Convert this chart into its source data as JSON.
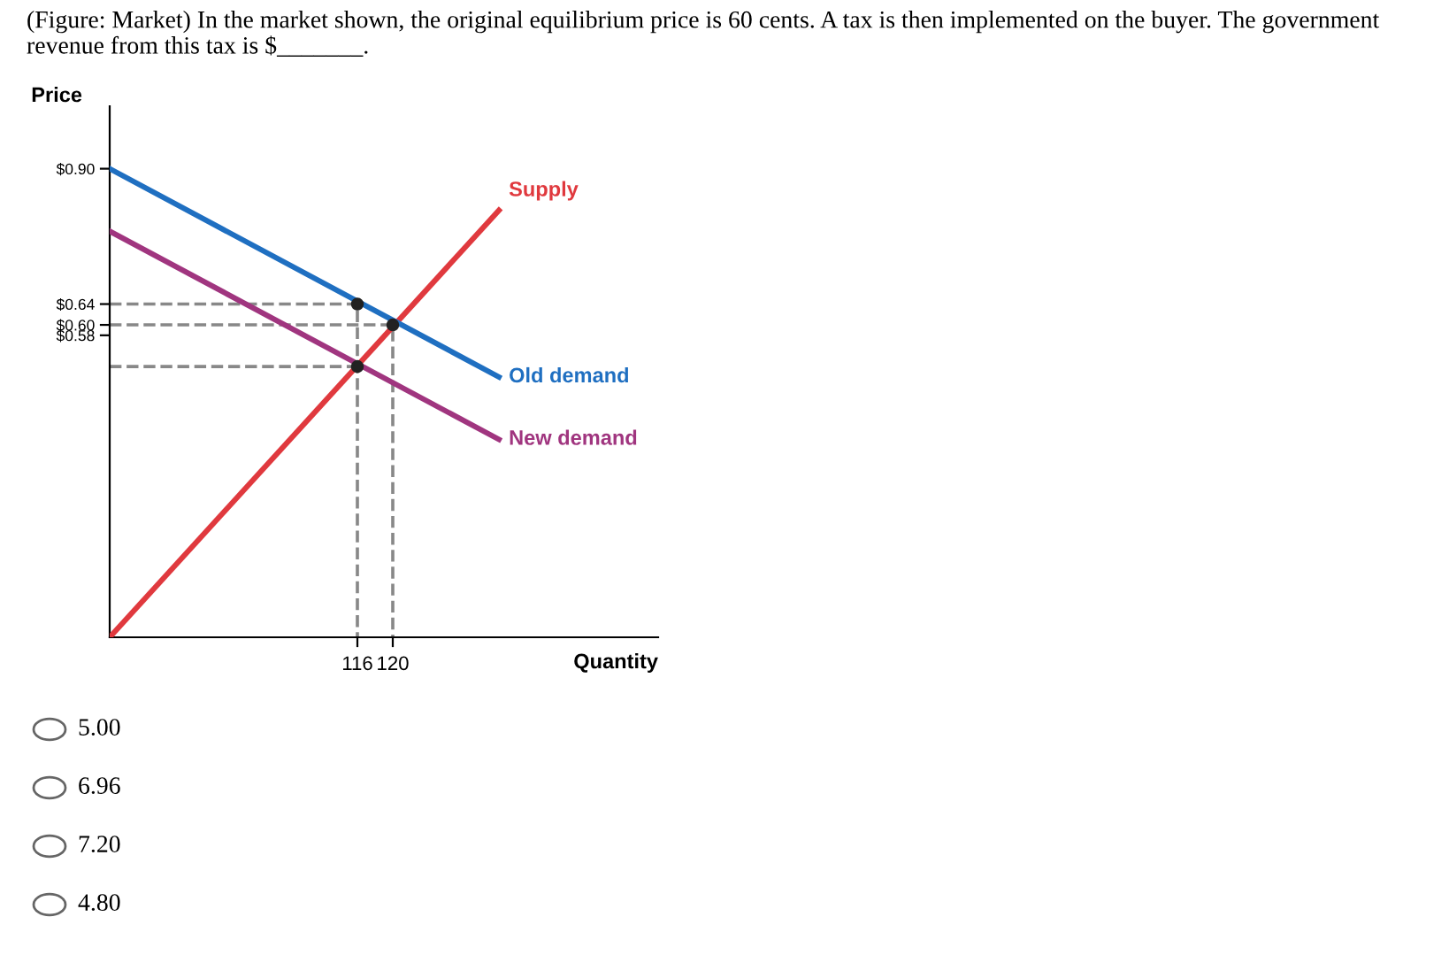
{
  "chart_data": {
    "type": "line",
    "title": "(Figure: Market) In the market shown, the original equilibrium price is 60 cents. A tax is then implemented on the buyer. The government revenue from this tax is $_______.",
    "xlabel": "Quantity",
    "ylabel": "Price",
    "xlim": [
      88,
      150
    ],
    "ylim": [
      0,
      1.02
    ],
    "xticks": [
      116,
      120
    ],
    "yticks": [
      {
        "value": 0.9,
        "label": "$0.90"
      },
      {
        "value": 0.64,
        "label": "$0.64"
      },
      {
        "value": 0.6,
        "label": "$0.60"
      },
      {
        "value": 0.58,
        "label": "$0.58"
      }
    ],
    "grid": false,
    "legend": false,
    "marker": "none",
    "line_style": "solid",
    "series": [
      {
        "name": "Supply",
        "color": "#e0393e",
        "x": [
          88,
          132
        ],
        "values": [
          0,
          0.82
        ]
      },
      {
        "name": "Old demand",
        "color": "#1f6fc1",
        "x": [
          88,
          132
        ],
        "values": [
          0.9,
          0.5
        ]
      },
      {
        "name": "New demand",
        "color": "#a0357f",
        "x": [
          88,
          132
        ],
        "values": [
          0.78,
          0.38
        ]
      },
      {
        "color": "#888888",
        "line_style": "dashed",
        "x": [
          88,
          116,
          116
        ],
        "values": [
          0.64,
          0.64,
          0
        ]
      },
      {
        "color": "#888888",
        "line_style": "dashed",
        "x": [
          88,
          120,
          120
        ],
        "values": [
          0.6,
          0.6,
          0
        ]
      },
      {
        "color": "#888888",
        "line_style": "dashed",
        "x": [
          88,
          116
        ],
        "values": [
          0.52,
          0.52
        ]
      },
      {
        "type": "scatter",
        "marker": "circle",
        "color": "#222222",
        "x": [
          116,
          120,
          116
        ],
        "values": [
          0.64,
          0.6,
          0.52
        ]
      }
    ],
    "annotations": [
      "5.00",
      "6.96",
      "7.20",
      "4.80"
    ]
  }
}
